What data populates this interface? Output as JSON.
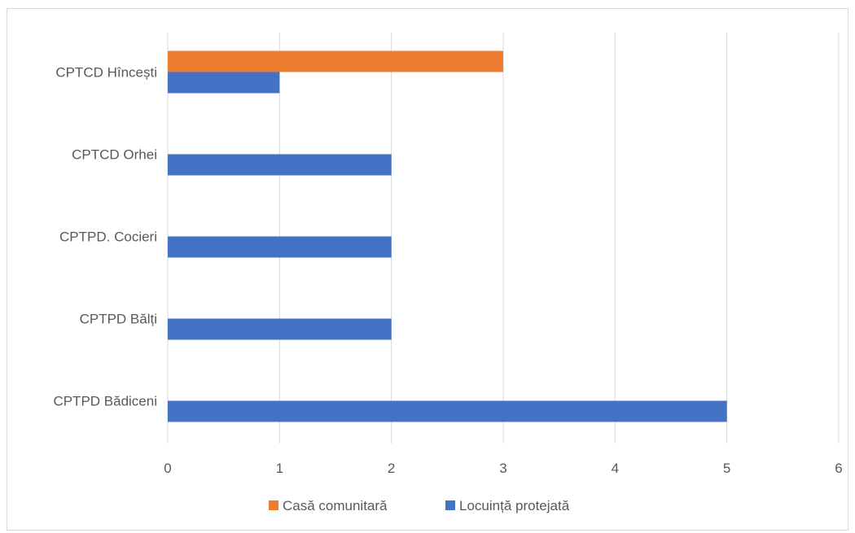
{
  "chart_data": {
    "type": "bar",
    "orientation": "horizontal",
    "categories": [
      "CPTCD Hîncești",
      "CPTCD Orhei",
      "CPTPD. Cocieri",
      "CPTPD Bălți",
      "CPTPD Bădiceni"
    ],
    "series": [
      {
        "name": "Casă comunitară",
        "color": "#ED7D31",
        "values": [
          3,
          0,
          0,
          0,
          0
        ]
      },
      {
        "name": "Locuință protejată",
        "color": "#4472C4",
        "values": [
          1,
          2,
          2,
          2,
          5
        ]
      }
    ],
    "xlim": [
      0,
      6
    ],
    "x_ticks": [
      "0",
      "1",
      "2",
      "3",
      "4",
      "5",
      "6"
    ],
    "grid": true,
    "legend_position": "bottom",
    "title": "",
    "xlabel": "",
    "ylabel": ""
  }
}
